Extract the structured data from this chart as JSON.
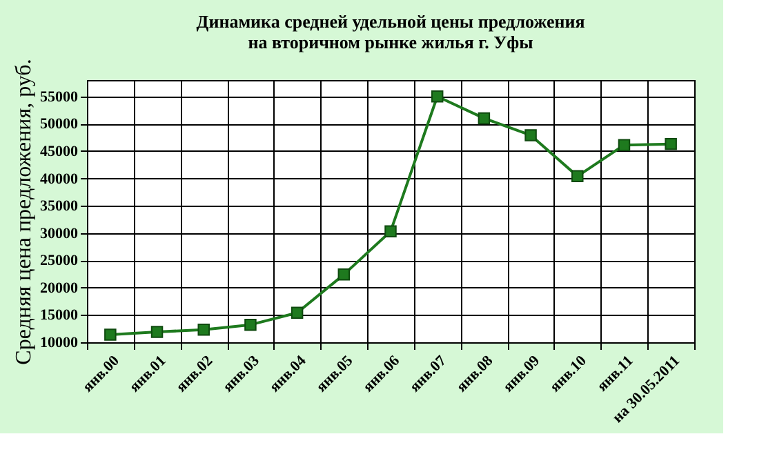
{
  "chart_data": {
    "type": "line",
    "title": "Динамика средней удельной цены предложения\nна вторичном рынке жилья г. Уфы",
    "ylabel": "Средняя цена предложения, руб.",
    "categories": [
      "янв.00",
      "янв.01",
      "янв.02",
      "янв.03",
      "янв.04",
      "янв.05",
      "янв.06",
      "янв.07",
      "янв.08",
      "янв.09",
      "янв.10",
      "янв.11",
      "на 30.05.2011"
    ],
    "series": [
      {
        "color": "#1e7a1e",
        "values": [
          11400,
          11900,
          12300,
          13200,
          15400,
          22400,
          30300,
          55000,
          51000,
          47900,
          40400,
          46100,
          46300
        ]
      }
    ],
    "ylim": [
      10000,
      58000
    ],
    "yticks": [
      10000,
      15000,
      20000,
      25000,
      30000,
      35000,
      40000,
      45000,
      50000,
      55000
    ],
    "grid": true,
    "marker": "square",
    "line_style": "solid"
  }
}
